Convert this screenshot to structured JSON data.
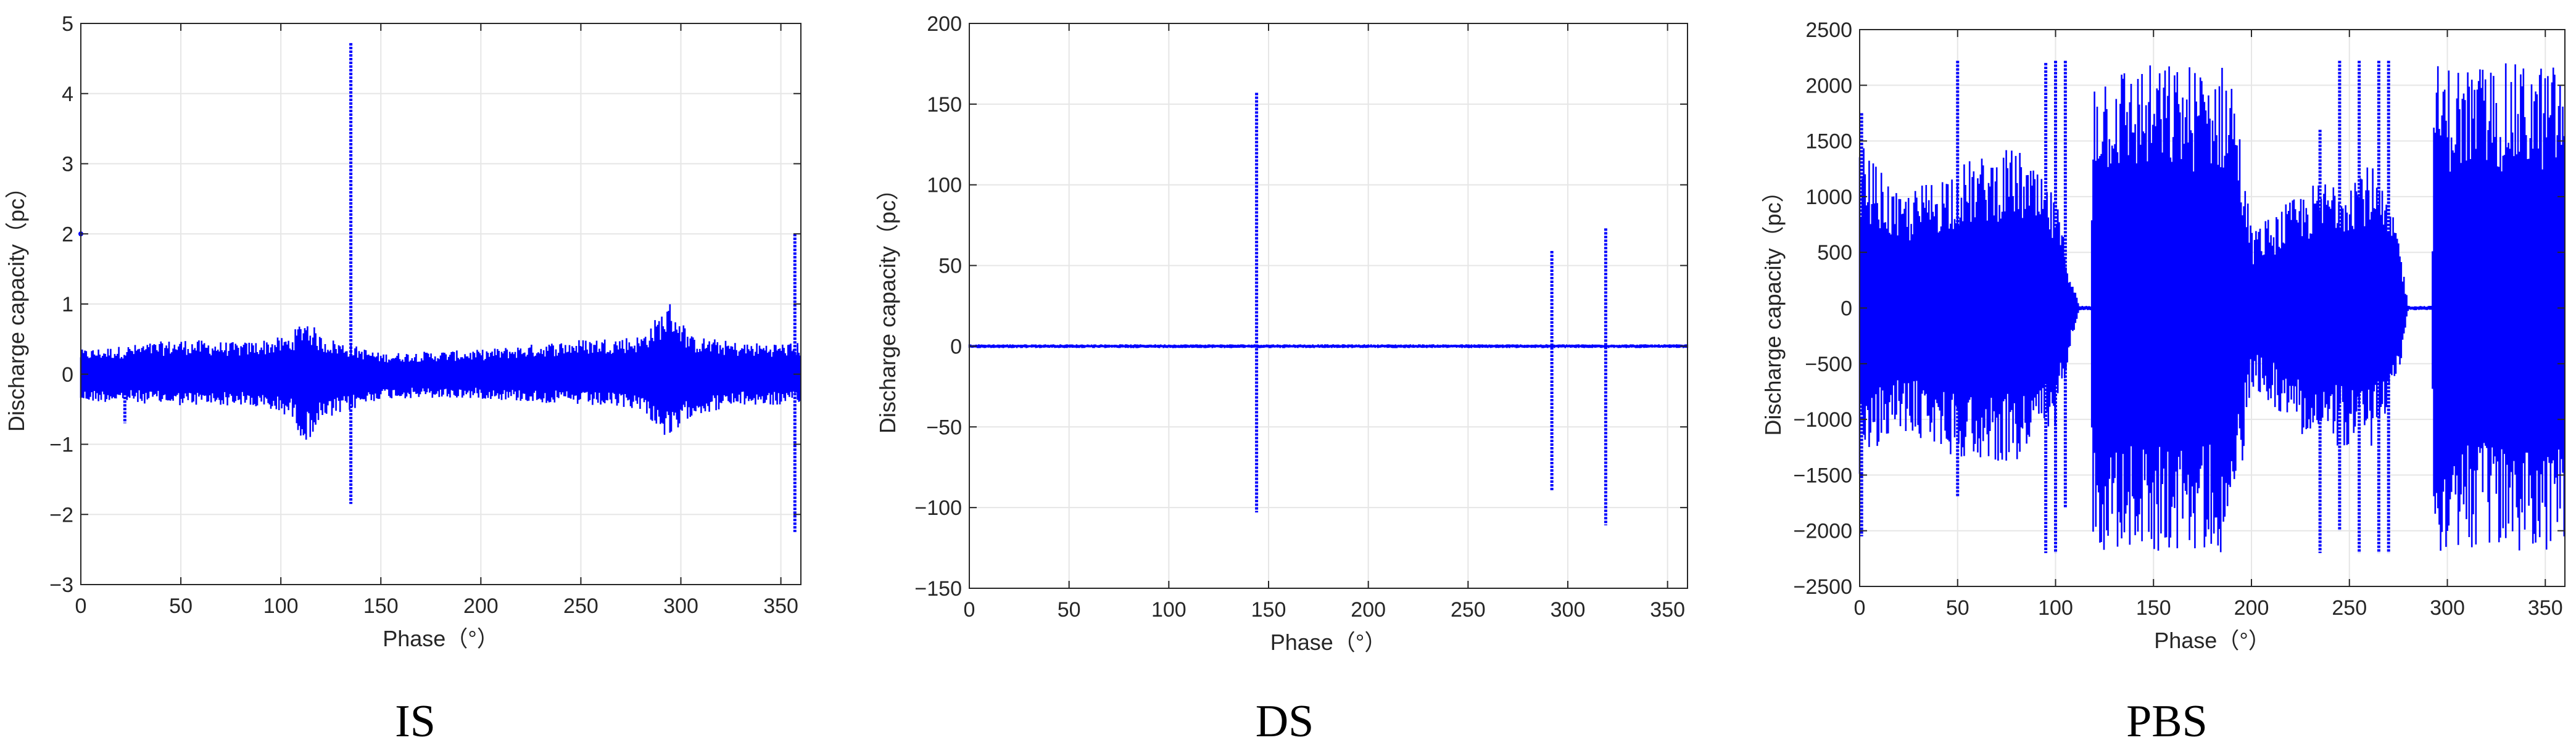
{
  "colors": {
    "series": "#0000FF",
    "grid": "#E6E6E6",
    "axis": "#262626"
  },
  "chart_data": [
    {
      "type": "scatter",
      "caption": "IS",
      "xlabel": "Phase（°）",
      "ylabel": "Discharge capacity（pc）",
      "xlim": [
        0,
        360
      ],
      "ylim": [
        -3,
        5
      ],
      "xticks": [
        0,
        50,
        100,
        150,
        200,
        250,
        300,
        350
      ],
      "yticks": [
        -3,
        -2,
        -1,
        0,
        1,
        2,
        3,
        4,
        5
      ],
      "grid": true,
      "envelope": [
        {
          "x": 0,
          "lo": -0.4,
          "hi": 0.35
        },
        {
          "x": 20,
          "lo": -0.4,
          "hi": 0.4
        },
        {
          "x": 50,
          "lo": -0.45,
          "hi": 0.5
        },
        {
          "x": 80,
          "lo": -0.45,
          "hi": 0.45
        },
        {
          "x": 105,
          "lo": -0.6,
          "hi": 0.55
        },
        {
          "x": 112,
          "lo": -1.0,
          "hi": 0.85
        },
        {
          "x": 120,
          "lo": -0.7,
          "hi": 0.55
        },
        {
          "x": 150,
          "lo": -0.35,
          "hi": 0.3
        },
        {
          "x": 200,
          "lo": -0.35,
          "hi": 0.35
        },
        {
          "x": 250,
          "lo": -0.45,
          "hi": 0.5
        },
        {
          "x": 280,
          "lo": -0.5,
          "hi": 0.55
        },
        {
          "x": 295,
          "lo": -1.0,
          "hi": 1.05
        },
        {
          "x": 305,
          "lo": -0.6,
          "hi": 0.55
        },
        {
          "x": 330,
          "lo": -0.45,
          "hi": 0.45
        },
        {
          "x": 360,
          "lo": -0.45,
          "hi": 0.45
        }
      ],
      "spikes": [
        {
          "x": 22,
          "lo": -0.7,
          "hi": 0.1
        },
        {
          "x": 135,
          "lo": -1.85,
          "hi": 4.72
        },
        {
          "x": 357,
          "lo": -2.25,
          "hi": 2.0
        },
        {
          "x": 0,
          "lo": 2.0,
          "hi": 2.0
        }
      ]
    },
    {
      "type": "scatter",
      "caption": "DS",
      "xlabel": "Phase（°）",
      "ylabel": "Discharge capacity（pc）",
      "xlim": [
        0,
        360
      ],
      "ylim": [
        -150,
        200
      ],
      "xticks": [
        0,
        50,
        100,
        150,
        200,
        250,
        300,
        350
      ],
      "yticks": [
        -150,
        -100,
        -50,
        0,
        50,
        100,
        150,
        200
      ],
      "grid": true,
      "envelope": [
        {
          "x": 0,
          "lo": -1.2,
          "hi": 1.2
        },
        {
          "x": 360,
          "lo": -1.2,
          "hi": 1.2
        }
      ],
      "spikes": [
        {
          "x": 144,
          "lo": -103,
          "hi": 157
        },
        {
          "x": 292,
          "lo": -90,
          "hi": 59
        },
        {
          "x": 319,
          "lo": -111,
          "hi": 73
        }
      ]
    },
    {
      "type": "scatter",
      "caption": "PBS",
      "xlabel": "Phase（°）",
      "ylabel": "Discharge capacity（pc）",
      "xlim": [
        0,
        360
      ],
      "ylim": [
        -2500,
        2500
      ],
      "xticks": [
        0,
        50,
        100,
        150,
        200,
        250,
        300,
        350
      ],
      "yticks": [
        -2500,
        -2000,
        -1500,
        -1000,
        -500,
        0,
        500,
        1000,
        1500,
        2000,
        2500
      ],
      "grid": true,
      "envelope": [
        {
          "x": 0,
          "lo": -1500,
          "hi": 1500
        },
        {
          "x": 20,
          "lo": -1100,
          "hi": 1000
        },
        {
          "x": 50,
          "lo": -1350,
          "hi": 1300
        },
        {
          "x": 80,
          "lo": -1400,
          "hi": 1450
        },
        {
          "x": 100,
          "lo": -1100,
          "hi": 1000
        },
        {
          "x": 108,
          "lo": -300,
          "hi": 300
        },
        {
          "x": 112,
          "lo": -20,
          "hi": 20
        },
        {
          "x": 118,
          "lo": -20,
          "hi": 20
        },
        {
          "x": 119,
          "lo": -2200,
          "hi": 2200
        },
        {
          "x": 190,
          "lo": -2200,
          "hi": 2200
        },
        {
          "x": 200,
          "lo": -700,
          "hi": 700
        },
        {
          "x": 230,
          "lo": -1200,
          "hi": 1100
        },
        {
          "x": 260,
          "lo": -1300,
          "hi": 1350
        },
        {
          "x": 275,
          "lo": -700,
          "hi": 700
        },
        {
          "x": 280,
          "lo": -20,
          "hi": 20
        },
        {
          "x": 292,
          "lo": -20,
          "hi": 20
        },
        {
          "x": 293,
          "lo": -2200,
          "hi": 2200
        },
        {
          "x": 360,
          "lo": -2200,
          "hi": 2200
        }
      ],
      "spikes": [
        {
          "x": 50,
          "lo": -1700,
          "hi": 2220
        },
        {
          "x": 95,
          "lo": -2200,
          "hi": 2200
        },
        {
          "x": 100,
          "lo": -2200,
          "hi": 2220
        },
        {
          "x": 105,
          "lo": -1800,
          "hi": 2220
        },
        {
          "x": 235,
          "lo": -2200,
          "hi": 1600
        },
        {
          "x": 245,
          "lo": -2000,
          "hi": 2220
        },
        {
          "x": 255,
          "lo": -2200,
          "hi": 2220
        },
        {
          "x": 265,
          "lo": -2200,
          "hi": 2220
        },
        {
          "x": 270,
          "lo": -2200,
          "hi": 2220
        },
        {
          "x": 1,
          "lo": -2050,
          "hi": 1750
        }
      ]
    }
  ]
}
